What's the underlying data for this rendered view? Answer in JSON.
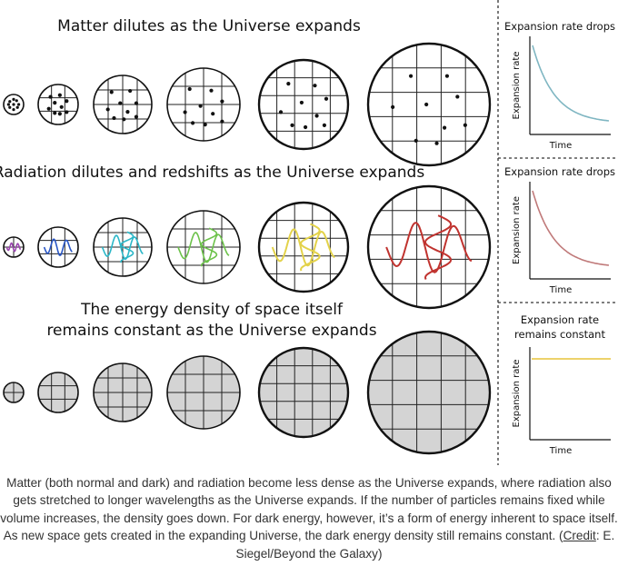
{
  "rows": [
    {
      "title": "Matter dilutes as the Universe expands",
      "fill": "#ffffff"
    },
    {
      "title": "Radiation dilutes and redshifts as the Universe expands",
      "fill": "#ffffff"
    },
    {
      "title_lines": [
        "The energy density of space itself",
        "remains constant as the Universe expands"
      ],
      "fill": "#d4d4d4"
    }
  ],
  "panels": [
    {
      "title_lines": [
        "Expansion rate drops"
      ],
      "ylabel": "Expansion rate",
      "xlabel": "Time",
      "curve": "decay",
      "color": "#7fb6c2"
    },
    {
      "title_lines": [
        "Expansion rate drops"
      ],
      "ylabel": "Expansion rate",
      "xlabel": "Time",
      "curve": "decay",
      "color": "#c07a7a"
    },
    {
      "title_lines": [
        "Expansion rate",
        "remains constant"
      ],
      "ylabel": "Expansion rate",
      "xlabel": "Time",
      "curve": "flat",
      "color": "#e7c33a"
    }
  ],
  "wave_colors": [
    "#9b47b0",
    "#2a57c6",
    "#2ab7c8",
    "#6cc24a",
    "#e3d24a",
    "#c0332f"
  ],
  "caption": {
    "text": "Matter (both normal and dark) and radiation become less dense as the Universe expands, where radiation also gets stretched to longer wavelengths as the Universe expands. If the number of particles remains fixed while volume increases, the density goes down. For dark energy, however, it’s a form of energy inherent to space itself. As new space gets created in the expanding Universe, the dark energy density still remains constant.",
    "credit_open": "(",
    "credit_link": "Credit",
    "credit_rest": ": E. Siegel/Beyond the Galaxy)"
  }
}
